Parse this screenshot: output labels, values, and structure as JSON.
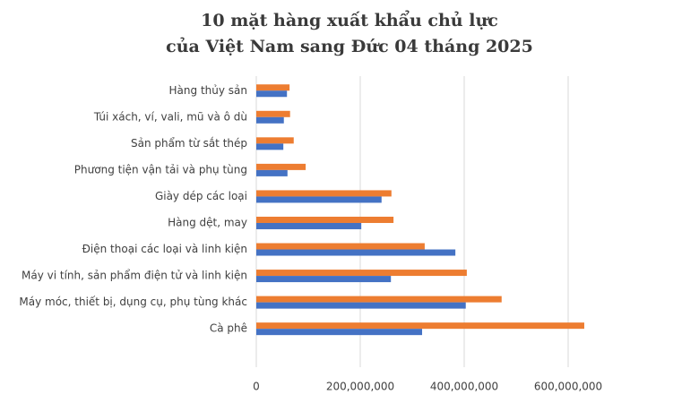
{
  "chart_data": {
    "type": "hbar",
    "title": [
      "10 mặt hàng xuất khẩu chủ lực",
      "của Việt Nam sang Đức 04 tháng 2025"
    ],
    "categories": [
      "Hàng thủy sản",
      "Túi xách, ví, vali, mũ và ô dù",
      "Sản phẩm từ sắt thép",
      "Phương tiện vận tải và phụ tùng",
      "Giày dép các loại",
      "Hàng dệt, may",
      "Điện thoại các loại và linh kiện",
      "Máy vi tính, sản phẩm điện tử và linh kiện",
      "Máy móc, thiết bị, dụng cụ, phụ tùng khác",
      "Cà phê"
    ],
    "series": [
      {
        "color": "#ed7d31",
        "values": [
          64000000,
          65000000,
          72000000,
          95000000,
          260000000,
          264000000,
          324000000,
          405000000,
          472000000,
          631000000
        ]
      },
      {
        "color": "#4472c4",
        "values": [
          59000000,
          53000000,
          52000000,
          60000000,
          241000000,
          202000000,
          383000000,
          259000000,
          403000000,
          319000000
        ]
      }
    ],
    "xlim": [
      0,
      700000000
    ],
    "xticks": [
      0,
      {
        "value": 200000000,
        "label": "200,000,000"
      },
      {
        "value": 400000000,
        "label": "400,000,000"
      },
      {
        "value": 600000000,
        "label": "600,000,000"
      }
    ],
    "grid": true
  }
}
